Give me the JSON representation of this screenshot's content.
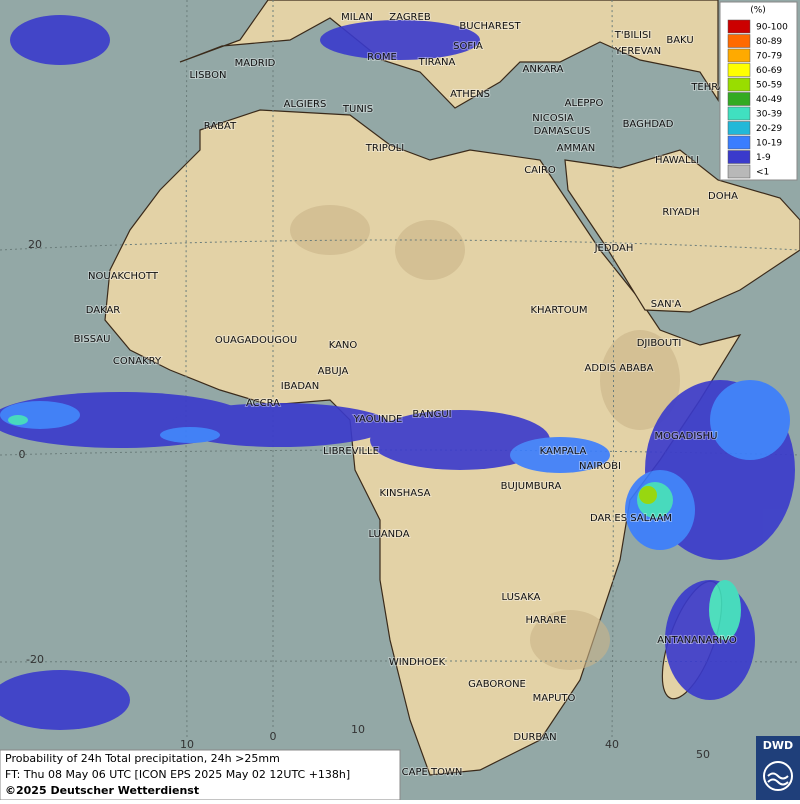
{
  "legend": {
    "title": "(%)",
    "items": [
      {
        "label": "90-100",
        "color": "#cc0000"
      },
      {
        "label": "80-89",
        "color": "#ff6a00"
      },
      {
        "label": "70-79",
        "color": "#ffaa00"
      },
      {
        "label": "60-69",
        "color": "#ffff00"
      },
      {
        "label": "50-59",
        "color": "#99dd00"
      },
      {
        "label": "40-49",
        "color": "#33aa22"
      },
      {
        "label": "30-39",
        "color": "#40e0c0"
      },
      {
        "label": "20-29",
        "color": "#22b8d8"
      },
      {
        "label": "10-19",
        "color": "#3a7dff"
      },
      {
        "label": "1-9",
        "color": "#3a3acc"
      },
      {
        "label": "<1",
        "color": "#b8b8b8"
      }
    ]
  },
  "grid_labels": {
    "latitude": [
      "20",
      "0",
      "-20"
    ],
    "longitude": [
      "10",
      "0",
      "10",
      "40",
      "50"
    ]
  },
  "cities": [
    "MILAN",
    "ZAGREB",
    "BUCHAREST",
    "LISBON",
    "MADRID",
    "ROME",
    "SOFIA",
    "TIRANA",
    "ANKARA",
    "T'BILISI",
    "YEREVAN",
    "BAKU",
    "TEHRA",
    "ALGIERS",
    "TUNIS",
    "ATHENS",
    "ALEPPO",
    "NICOSIA",
    "BAGHDAD",
    "RABAT",
    "TRIPOLI",
    "DAMASCUS",
    "AMMAN",
    "HAWALLI",
    "CAIRO",
    "DOHA",
    "RIYADH",
    "JEDDAH",
    "NOUAKCHOTT",
    "DAKAR",
    "KHARTOUM",
    "SAN'A",
    "BISSAU",
    "OUAGADOUGOU",
    "KANO",
    "DJIBOUTI",
    "CONAKRY",
    "ABUJA",
    "ADDIS ABABA",
    "IBADAN",
    "ACCRA",
    "YAOUNDE",
    "BANGUI",
    "MOGADISHU",
    "LIBREVILLE",
    "KAMPALA",
    "NAIROBI",
    "BUJUMBURA",
    "KINSHASA",
    "DAR ES SALAAM",
    "LUANDA",
    "LUSAKA",
    "HARARE",
    "ANTANANARIVO",
    "WINDHOEK",
    "GABORONE",
    "MAPUTO",
    "DURBAN",
    "CAPE TOWN"
  ],
  "footer": {
    "title": "Probability of 24h Total precipitation, 24h >25mm",
    "forecast_time": "FT: Thu 08 May 06 UTC [ICON EPS 2025 May 02 12UTC +138h]",
    "copyright": "©2025 Deutscher Wetterdienst"
  },
  "logo": "DWD"
}
